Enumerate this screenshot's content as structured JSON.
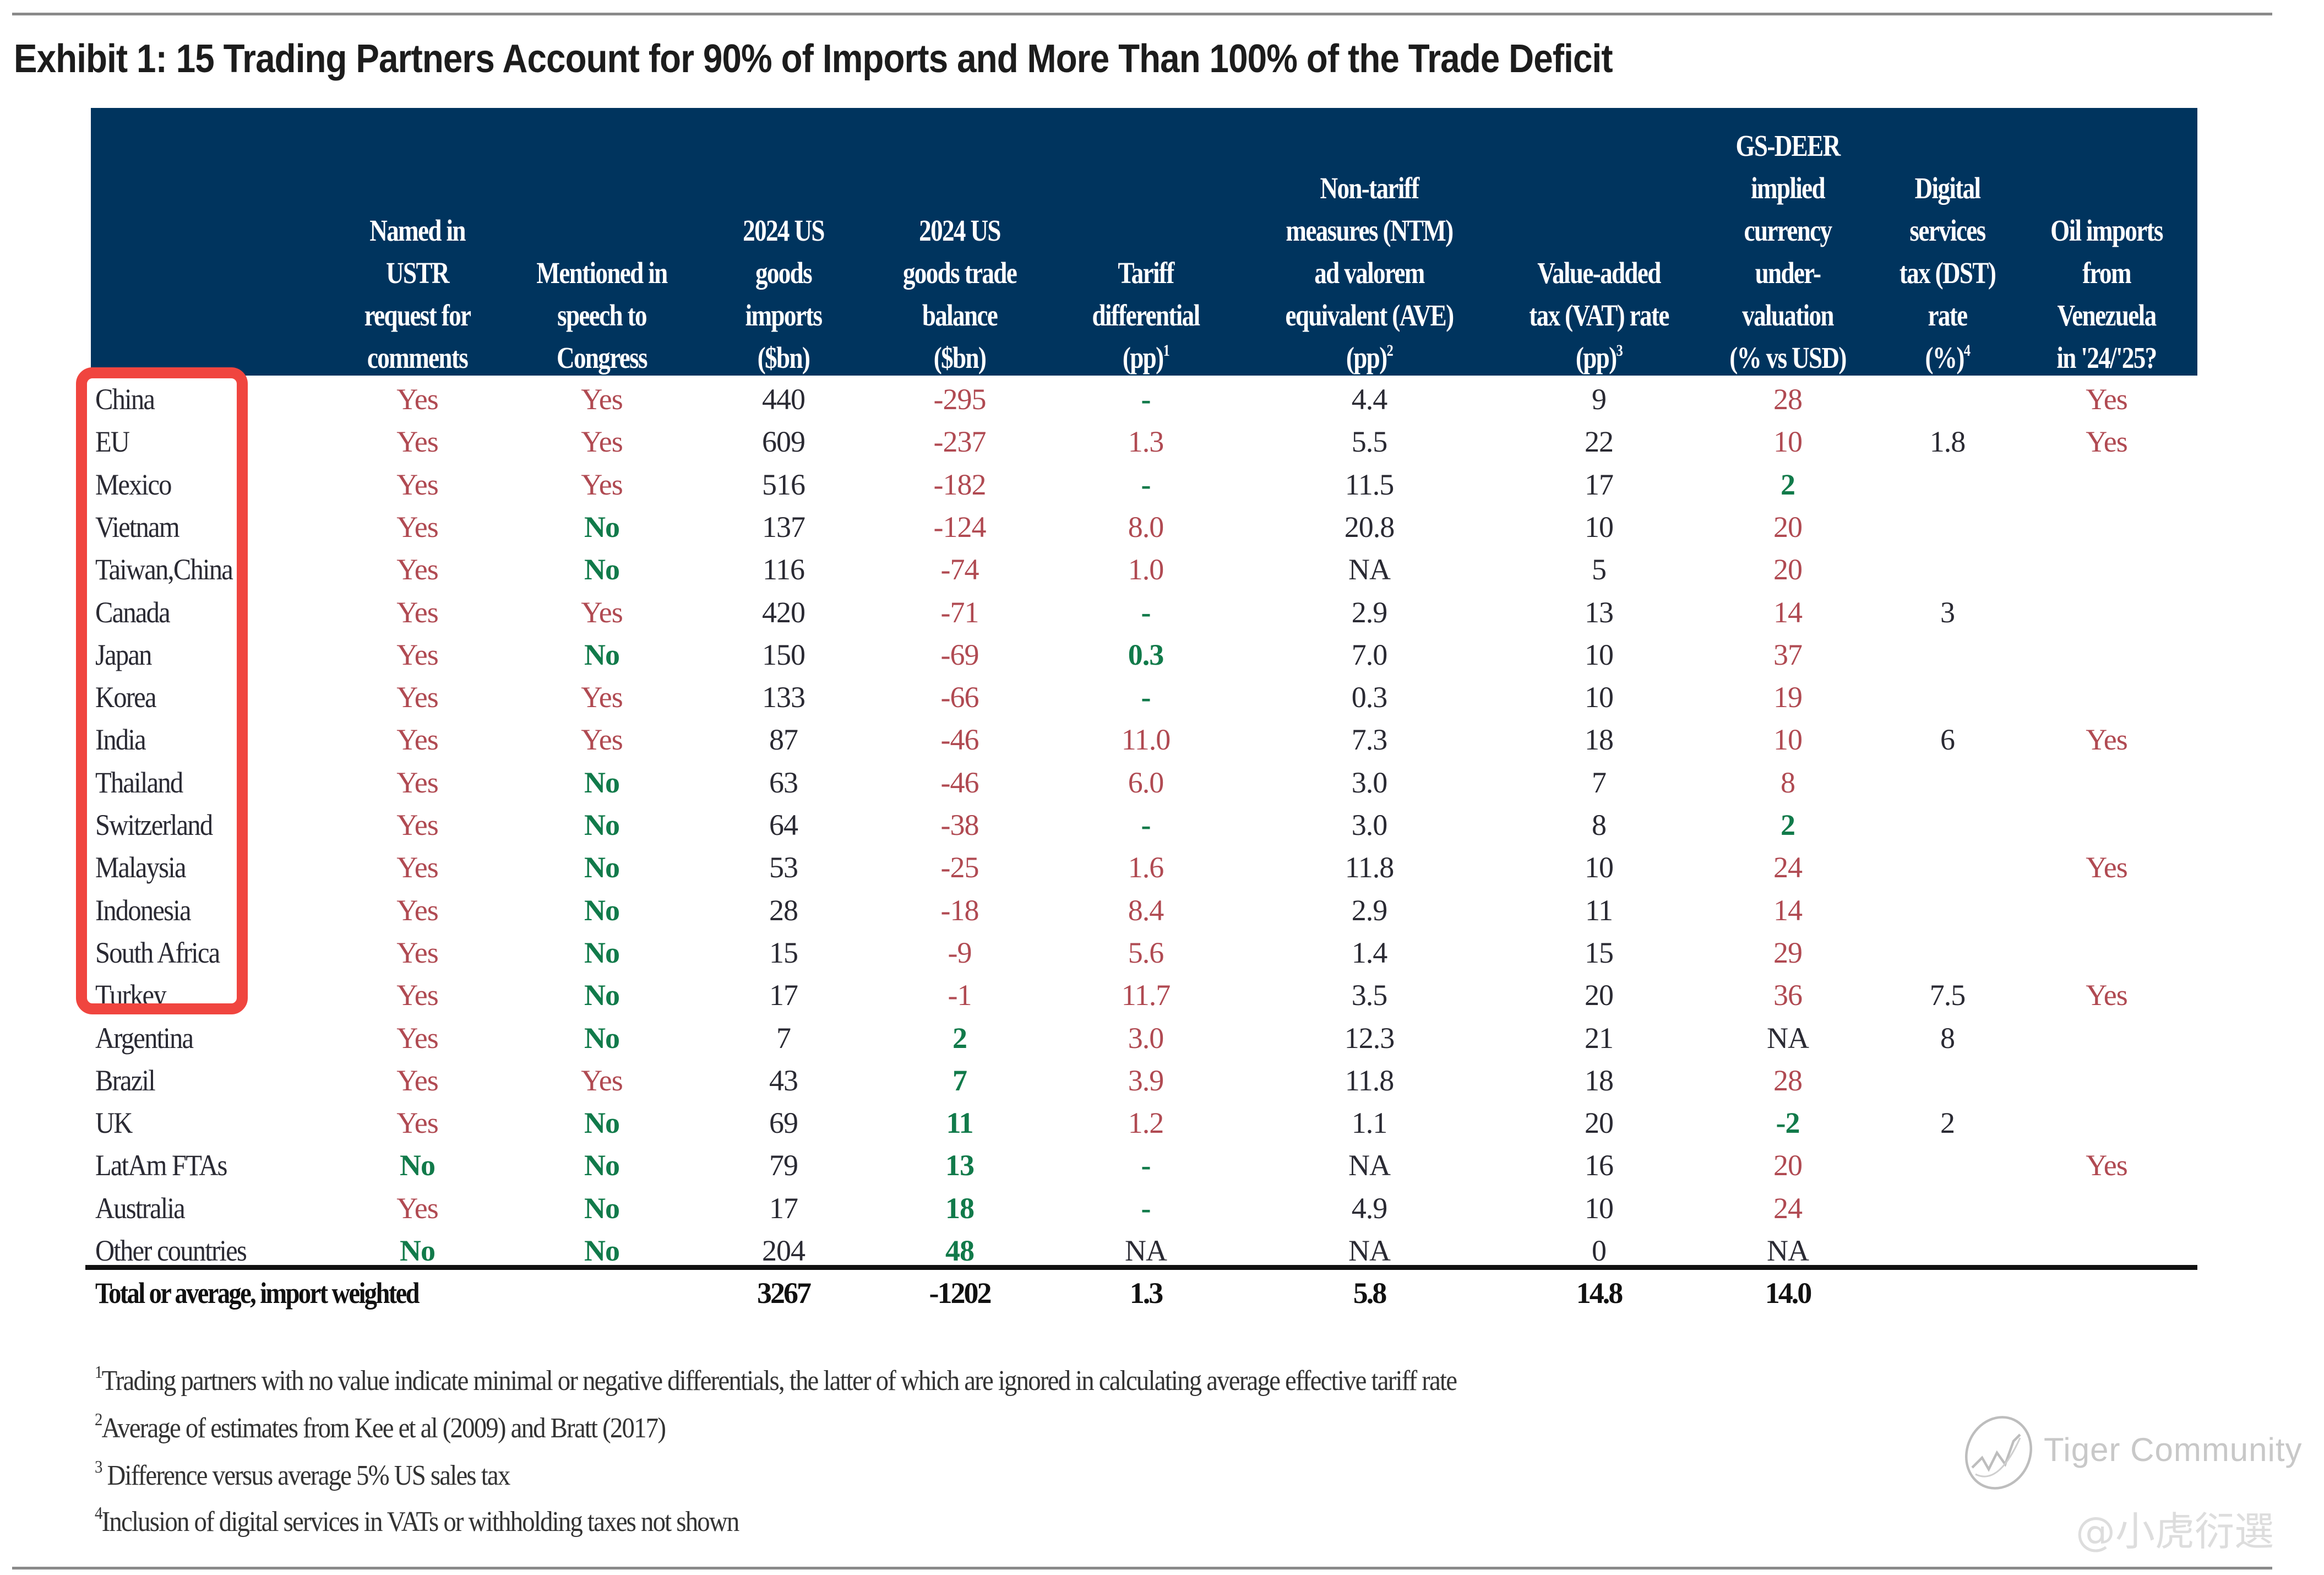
{
  "title": "Exhibit 1: 15 Trading Partners Account for 90% of Imports and More Than 100% of the Trade Deficit",
  "colors": {
    "header_bg": "#00345e",
    "highlight_red": "#b04a52",
    "highlight_green": "#117a4a",
    "annotation_box": "#f0453f"
  },
  "columns": [
    {
      "key": "country",
      "lines": []
    },
    {
      "key": "ustr",
      "lines": [
        "Named in",
        "USTR",
        "request for",
        "comments"
      ],
      "sup": ""
    },
    {
      "key": "speech",
      "lines": [
        "Mentioned in",
        "speech to",
        "Congress"
      ],
      "sup": ""
    },
    {
      "key": "imports",
      "lines": [
        "2024 US",
        "goods",
        "imports",
        "($bn)"
      ],
      "sup": ""
    },
    {
      "key": "balance",
      "lines": [
        "2024 US",
        "goods trade",
        "balance",
        "($bn)"
      ],
      "sup": ""
    },
    {
      "key": "tariff",
      "lines": [
        "Tariff",
        "differential",
        "(pp)"
      ],
      "sup": "1"
    },
    {
      "key": "ntm",
      "lines": [
        "Non-tariff",
        "measures (NTM)",
        "ad valorem",
        "equivalent (AVE)",
        "(pp)"
      ],
      "sup": "2"
    },
    {
      "key": "vat",
      "lines": [
        "Value-added",
        "tax (VAT) rate",
        "(pp)"
      ],
      "sup": "3"
    },
    {
      "key": "gsdeer",
      "lines": [
        "GS-DEER",
        "implied",
        "currency",
        "under-",
        "valuation",
        "(% vs USD)"
      ],
      "sup": ""
    },
    {
      "key": "dst",
      "lines": [
        "Digital",
        "services",
        "tax (DST)",
        "rate",
        "(%)"
      ],
      "sup": "4"
    },
    {
      "key": "oil",
      "lines": [
        "Oil imports",
        "from",
        "Venezuela",
        "in '24/'25?"
      ],
      "sup": ""
    }
  ],
  "rows": [
    {
      "country": "China",
      "ustr": "Yes",
      "speech": "Yes",
      "imports": "440",
      "balance": "-295",
      "tariff": "-",
      "ntm": "4.4",
      "vat": "9",
      "gsdeer": "28",
      "dst": "",
      "oil": "Yes",
      "styles": {
        "ustr": "red",
        "speech": "red",
        "balance": "red",
        "tariff": "green",
        "gsdeer": "red",
        "oil": "red"
      }
    },
    {
      "country": "EU",
      "ustr": "Yes",
      "speech": "Yes",
      "imports": "609",
      "balance": "-237",
      "tariff": "1.3",
      "ntm": "5.5",
      "vat": "22",
      "gsdeer": "10",
      "dst": "1.8",
      "oil": "Yes",
      "styles": {
        "ustr": "red",
        "speech": "red",
        "balance": "red",
        "tariff": "red",
        "gsdeer": "red",
        "oil": "red"
      }
    },
    {
      "country": "Mexico",
      "ustr": "Yes",
      "speech": "Yes",
      "imports": "516",
      "balance": "-182",
      "tariff": "-",
      "ntm": "11.5",
      "vat": "17",
      "gsdeer": "2",
      "dst": "",
      "oil": "",
      "styles": {
        "ustr": "red",
        "speech": "red",
        "balance": "red",
        "tariff": "green",
        "gsdeer": "green"
      }
    },
    {
      "country": "Vietnam",
      "ustr": "Yes",
      "speech": "No",
      "imports": "137",
      "balance": "-124",
      "tariff": "8.0",
      "ntm": "20.8",
      "vat": "10",
      "gsdeer": "20",
      "dst": "",
      "oil": "",
      "styles": {
        "ustr": "red",
        "speech": "green",
        "balance": "red",
        "tariff": "red",
        "gsdeer": "red"
      }
    },
    {
      "country": "Taiwan,China",
      "ustr": "Yes",
      "speech": "No",
      "imports": "116",
      "balance": "-74",
      "tariff": "1.0",
      "ntm": "NA",
      "vat": "5",
      "gsdeer": "20",
      "dst": "",
      "oil": "",
      "styles": {
        "ustr": "red",
        "speech": "green",
        "balance": "red",
        "tariff": "red",
        "gsdeer": "red"
      }
    },
    {
      "country": "Canada",
      "ustr": "Yes",
      "speech": "Yes",
      "imports": "420",
      "balance": "-71",
      "tariff": "-",
      "ntm": "2.9",
      "vat": "13",
      "gsdeer": "14",
      "dst": "3",
      "oil": "",
      "styles": {
        "ustr": "red",
        "speech": "red",
        "balance": "red",
        "tariff": "green",
        "gsdeer": "red"
      }
    },
    {
      "country": "Japan",
      "ustr": "Yes",
      "speech": "No",
      "imports": "150",
      "balance": "-69",
      "tariff": "0.3",
      "ntm": "7.0",
      "vat": "10",
      "gsdeer": "37",
      "dst": "",
      "oil": "",
      "styles": {
        "ustr": "red",
        "speech": "green",
        "balance": "red",
        "tariff": "green",
        "gsdeer": "red"
      }
    },
    {
      "country": "Korea",
      "ustr": "Yes",
      "speech": "Yes",
      "imports": "133",
      "balance": "-66",
      "tariff": "-",
      "ntm": "0.3",
      "vat": "10",
      "gsdeer": "19",
      "dst": "",
      "oil": "",
      "styles": {
        "ustr": "red",
        "speech": "red",
        "balance": "red",
        "tariff": "green",
        "gsdeer": "red"
      }
    },
    {
      "country": "India",
      "ustr": "Yes",
      "speech": "Yes",
      "imports": "87",
      "balance": "-46",
      "tariff": "11.0",
      "ntm": "7.3",
      "vat": "18",
      "gsdeer": "10",
      "dst": "6",
      "oil": "Yes",
      "styles": {
        "ustr": "red",
        "speech": "red",
        "balance": "red",
        "tariff": "red",
        "gsdeer": "red",
        "oil": "red"
      }
    },
    {
      "country": "Thailand",
      "ustr": "Yes",
      "speech": "No",
      "imports": "63",
      "balance": "-46",
      "tariff": "6.0",
      "ntm": "3.0",
      "vat": "7",
      "gsdeer": "8",
      "dst": "",
      "oil": "",
      "styles": {
        "ustr": "red",
        "speech": "green",
        "balance": "red",
        "tariff": "red",
        "gsdeer": "red"
      }
    },
    {
      "country": "Switzerland",
      "ustr": "Yes",
      "speech": "No",
      "imports": "64",
      "balance": "-38",
      "tariff": "-",
      "ntm": "3.0",
      "vat": "8",
      "gsdeer": "2",
      "dst": "",
      "oil": "",
      "styles": {
        "ustr": "red",
        "speech": "green",
        "balance": "red",
        "tariff": "green",
        "gsdeer": "green"
      }
    },
    {
      "country": "Malaysia",
      "ustr": "Yes",
      "speech": "No",
      "imports": "53",
      "balance": "-25",
      "tariff": "1.6",
      "ntm": "11.8",
      "vat": "10",
      "gsdeer": "24",
      "dst": "",
      "oil": "Yes",
      "styles": {
        "ustr": "red",
        "speech": "green",
        "balance": "red",
        "tariff": "red",
        "gsdeer": "red",
        "oil": "red"
      }
    },
    {
      "country": "Indonesia",
      "ustr": "Yes",
      "speech": "No",
      "imports": "28",
      "balance": "-18",
      "tariff": "8.4",
      "ntm": "2.9",
      "vat": "11",
      "gsdeer": "14",
      "dst": "",
      "oil": "",
      "styles": {
        "ustr": "red",
        "speech": "green",
        "balance": "red",
        "tariff": "red",
        "gsdeer": "red"
      }
    },
    {
      "country": "South Africa",
      "ustr": "Yes",
      "speech": "No",
      "imports": "15",
      "balance": "-9",
      "tariff": "5.6",
      "ntm": "1.4",
      "vat": "15",
      "gsdeer": "29",
      "dst": "",
      "oil": "",
      "styles": {
        "ustr": "red",
        "speech": "green",
        "balance": "red",
        "tariff": "red",
        "gsdeer": "red"
      }
    },
    {
      "country": "Turkey",
      "ustr": "Yes",
      "speech": "No",
      "imports": "17",
      "balance": "-1",
      "tariff": "11.7",
      "ntm": "3.5",
      "vat": "20",
      "gsdeer": "36",
      "dst": "7.5",
      "oil": "Yes",
      "styles": {
        "ustr": "red",
        "speech": "green",
        "balance": "red",
        "tariff": "red",
        "gsdeer": "red",
        "oil": "red"
      }
    },
    {
      "country": "Argentina",
      "ustr": "Yes",
      "speech": "No",
      "imports": "7",
      "balance": "2",
      "tariff": "3.0",
      "ntm": "12.3",
      "vat": "21",
      "gsdeer": "NA",
      "dst": "8",
      "oil": "",
      "styles": {
        "ustr": "red",
        "speech": "green",
        "balance": "green",
        "tariff": "red"
      }
    },
    {
      "country": "Brazil",
      "ustr": "Yes",
      "speech": "Yes",
      "imports": "43",
      "balance": "7",
      "tariff": "3.9",
      "ntm": "11.8",
      "vat": "18",
      "gsdeer": "28",
      "dst": "",
      "oil": "",
      "styles": {
        "ustr": "red",
        "speech": "red",
        "balance": "green",
        "tariff": "red",
        "gsdeer": "red"
      }
    },
    {
      "country": "UK",
      "ustr": "Yes",
      "speech": "No",
      "imports": "69",
      "balance": "11",
      "tariff": "1.2",
      "ntm": "1.1",
      "vat": "20",
      "gsdeer": "-2",
      "dst": "2",
      "oil": "",
      "styles": {
        "ustr": "red",
        "speech": "green",
        "balance": "green",
        "tariff": "red",
        "gsdeer": "green"
      }
    },
    {
      "country": "LatAm FTAs",
      "ustr": "No",
      "speech": "No",
      "imports": "79",
      "balance": "13",
      "tariff": "-",
      "ntm": "NA",
      "vat": "16",
      "gsdeer": "20",
      "dst": "",
      "oil": "Yes",
      "styles": {
        "ustr": "green",
        "speech": "green",
        "balance": "green",
        "tariff": "green",
        "gsdeer": "red",
        "oil": "red"
      }
    },
    {
      "country": "Australia",
      "ustr": "Yes",
      "speech": "No",
      "imports": "17",
      "balance": "18",
      "tariff": "-",
      "ntm": "4.9",
      "vat": "10",
      "gsdeer": "24",
      "dst": "",
      "oil": "",
      "styles": {
        "ustr": "red",
        "speech": "green",
        "balance": "green",
        "tariff": "green",
        "gsdeer": "red"
      }
    },
    {
      "country": "Other countries",
      "ustr": "No",
      "speech": "No",
      "imports": "204",
      "balance": "48",
      "tariff": "NA",
      "ntm": "NA",
      "vat": "0",
      "gsdeer": "NA",
      "dst": "",
      "oil": "",
      "styles": {
        "ustr": "green",
        "speech": "green",
        "balance": "green"
      }
    }
  ],
  "total": {
    "country": "Total or average, import weighted",
    "ustr": "",
    "speech": "",
    "imports": "3267",
    "balance": "-1202",
    "tariff": "1.3",
    "ntm": "5.8",
    "vat": "14.8",
    "gsdeer": "14.0",
    "dst": "",
    "oil": ""
  },
  "footnotes": [
    {
      "mark": "1",
      "text": "Trading partners with no value indicate minimal or negative differentials, the latter of which are ignored in calculating average effective tariff rate"
    },
    {
      "mark": "2",
      "text": "Average of estimates from Kee et al (2009) and Bratt (2017)"
    },
    {
      "mark": "3",
      "text": " Difference versus average 5% US sales tax"
    },
    {
      "mark": "4",
      "text": "Inclusion of digital services in VATs or withholding taxes not shown"
    }
  ],
  "watermark": {
    "brand": "Tiger Community",
    "handle": "@小虎衍選",
    "icon": "tiger-community-logo-icon"
  },
  "annotation": {
    "type": "highlight-box",
    "covers": "first 15 country names"
  }
}
